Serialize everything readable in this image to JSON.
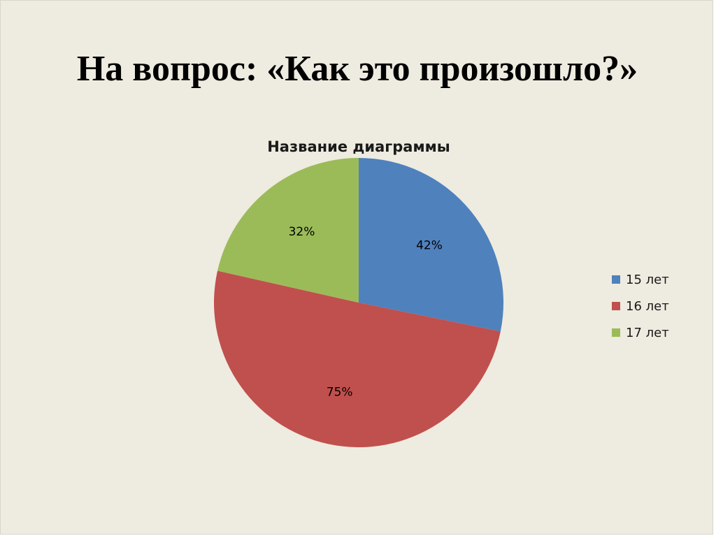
{
  "slide": {
    "title": "На вопрос: «Как это произошло?»"
  },
  "chart_data": {
    "type": "pie",
    "title": "Название диаграммы",
    "categories": [
      "15 лет",
      "16 лет",
      "17 лет"
    ],
    "values": [
      42,
      75,
      32
    ],
    "labels": [
      "42%",
      "75%",
      "32%"
    ],
    "colors": [
      "#4f81bd",
      "#c0504d",
      "#9bbb59"
    ],
    "start": "12 o'clock",
    "direction": "clockwise",
    "legend_position": "right"
  }
}
